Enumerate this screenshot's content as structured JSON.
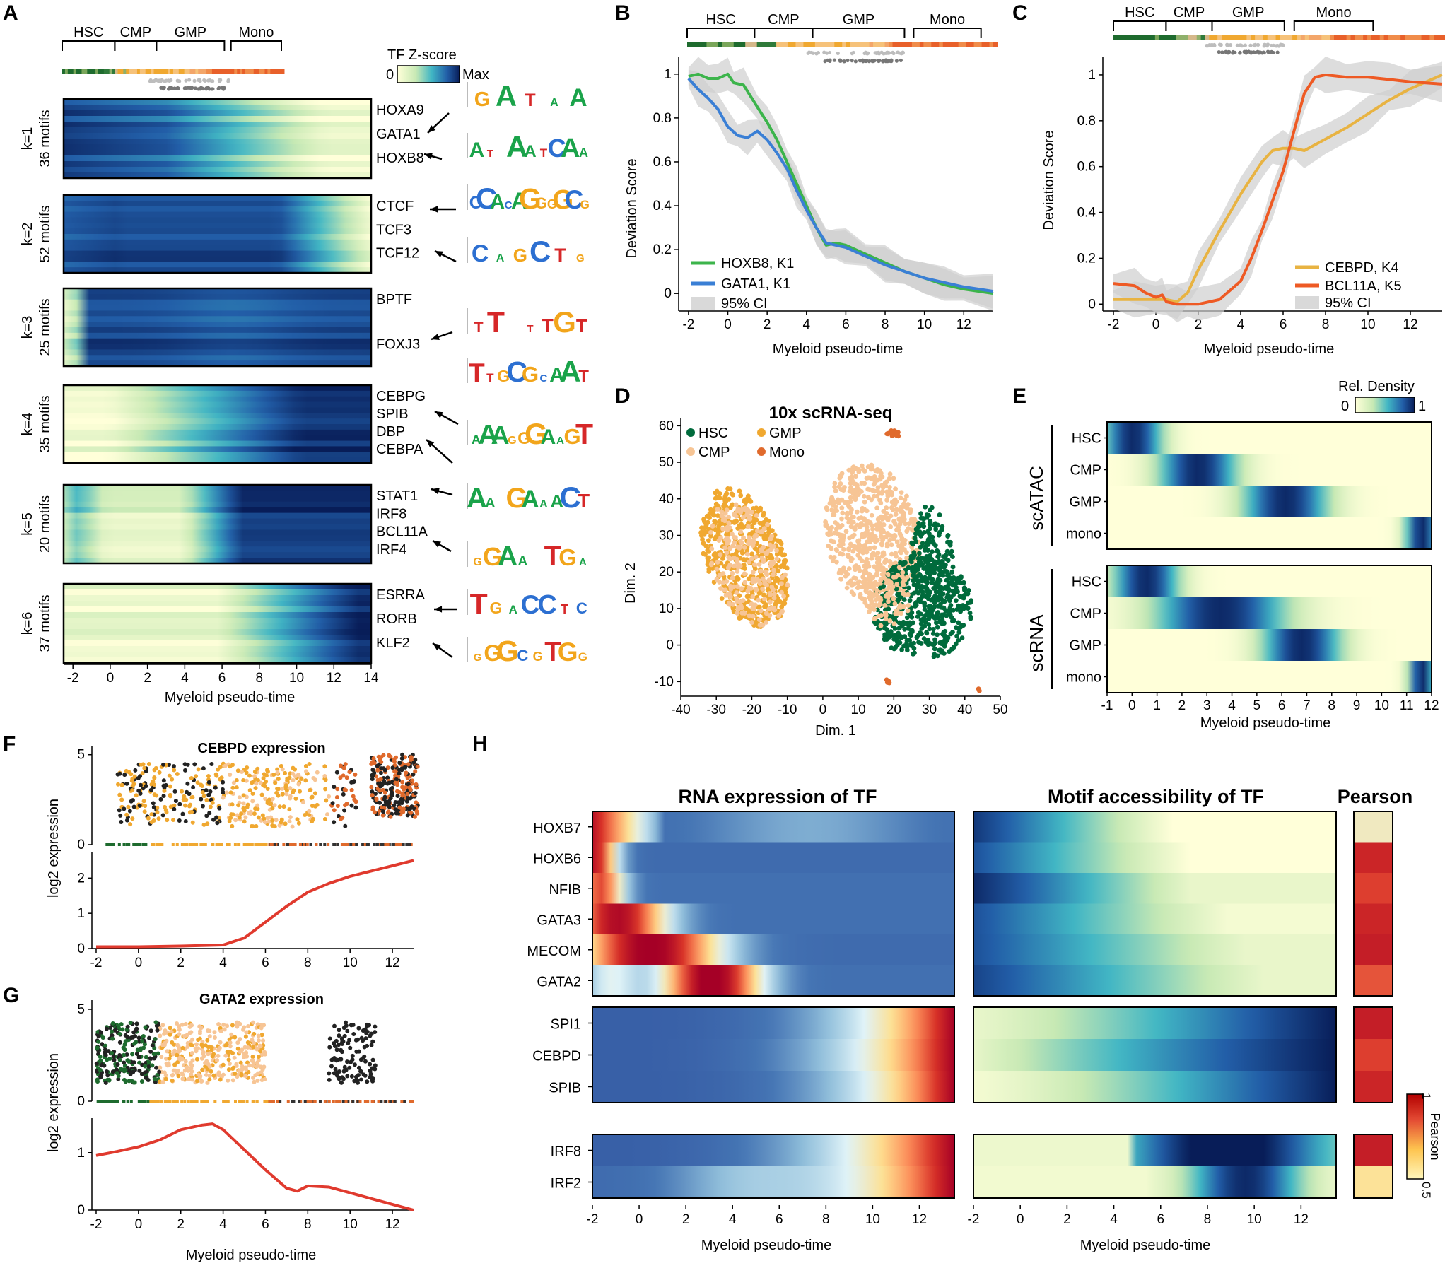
{
  "panel_labels": {
    "a": "A",
    "b": "B",
    "c": "C",
    "d": "D",
    "e": "E",
    "f": "F",
    "g": "G",
    "h": "H"
  },
  "stages": [
    "HSC",
    "CMP",
    "GMP",
    "Mono"
  ],
  "panelA": {
    "legend_title": "TF Z-score",
    "legend_min": "0",
    "legend_max": "Max",
    "xlabel": "Myeloid pseudo-time",
    "xticks": [
      "-2",
      "0",
      "2",
      "4",
      "6",
      "8",
      "10",
      "12",
      "14"
    ],
    "rows": [
      {
        "k": "k=1",
        "n": "36 motifs",
        "genes": [
          "HOXA9",
          "GATA1",
          "HOXB8"
        ]
      },
      {
        "k": "k=2",
        "n": "52 motifs",
        "genes": [
          "CTCF",
          "TCF3",
          "TCF12"
        ]
      },
      {
        "k": "k=3",
        "n": "25 motifs",
        "genes": [
          "BPTF",
          "FOXJ3"
        ]
      },
      {
        "k": "k=4",
        "n": "35 motifs",
        "genes": [
          "CEBPG",
          "SPIB",
          "DBP",
          "CEBPA"
        ]
      },
      {
        "k": "k=5",
        "n": "20 motifs",
        "genes": [
          "STAT1",
          "IRF8",
          "BCL11A",
          "IRF4"
        ]
      },
      {
        "k": "k=6",
        "n": "37 motifs",
        "genes": [
          "ESRRA",
          "RORB",
          "KLF2"
        ]
      }
    ],
    "logos": [
      "GATAA",
      "AT AATCAA",
      "CCACAGGGGCG",
      "CAGCTG",
      "TT TTGT",
      "TTGCGCAAT",
      "AAAGGGAAGT",
      "AA GAAACT",
      "GGAA TGA",
      "TGACCTC",
      "GGGCGTGG"
    ]
  },
  "chart_data": [
    {
      "panel": "B",
      "type": "line",
      "xlabel": "Myeloid pseudo-time",
      "ylabel": "Deviation Score",
      "xlim": [
        -2.5,
        13.5
      ],
      "ylim": [
        -0.08,
        1.08
      ],
      "xticks": [
        "-2",
        "0",
        "2",
        "4",
        "6",
        "8",
        "10",
        "12"
      ],
      "yticks": [
        "0",
        "0.2",
        "0.4",
        "0.6",
        "0.8",
        "1"
      ],
      "series": [
        {
          "name": "HOXB8, K1",
          "color": "#3cb44b",
          "x": [
            -2,
            -1.5,
            -1,
            -0.5,
            0,
            0.3,
            0.8,
            1.5,
            2,
            2.5,
            3,
            3.5,
            4,
            4.5,
            5,
            5.5,
            6,
            7,
            8,
            9,
            10,
            11,
            12,
            13.5
          ],
          "y": [
            0.99,
            1.0,
            0.98,
            0.98,
            1.0,
            0.96,
            0.95,
            0.85,
            0.78,
            0.7,
            0.6,
            0.5,
            0.4,
            0.3,
            0.22,
            0.23,
            0.22,
            0.18,
            0.14,
            0.1,
            0.07,
            0.04,
            0.02,
            0.0
          ]
        },
        {
          "name": "GATA1, K1",
          "color": "#3a7fd5",
          "x": [
            -2,
            -1.5,
            -1,
            -0.5,
            0,
            0.5,
            1,
            1.5,
            2,
            2.5,
            3,
            3.5,
            4,
            4.5,
            5,
            5.5,
            6,
            7,
            8,
            9,
            10,
            11,
            12,
            13.5
          ],
          "y": [
            0.98,
            0.93,
            0.89,
            0.84,
            0.76,
            0.72,
            0.71,
            0.74,
            0.7,
            0.64,
            0.57,
            0.47,
            0.38,
            0.3,
            0.23,
            0.22,
            0.21,
            0.17,
            0.13,
            0.1,
            0.07,
            0.05,
            0.03,
            0.01
          ]
        }
      ],
      "ci_label": "95% CI"
    },
    {
      "panel": "C",
      "type": "line",
      "xlabel": "Myeloid pseudo-time",
      "ylabel": "Deviation Score",
      "xlim": [
        -2.5,
        13.5
      ],
      "ylim": [
        -0.03,
        1.08
      ],
      "xticks": [
        "-2",
        "0",
        "2",
        "4",
        "6",
        "8",
        "10",
        "12"
      ],
      "yticks": [
        "0",
        "0.2",
        "0.4",
        "0.6",
        "0.8",
        "1"
      ],
      "series": [
        {
          "name": "CEBPD, K4",
          "color": "#e8b342",
          "x": [
            -2,
            -1,
            0,
            0.5,
            1,
            1.5,
            2,
            3,
            4,
            5,
            5.5,
            6,
            6.5,
            7,
            8,
            9,
            10,
            11,
            12,
            13.5
          ],
          "y": [
            0.02,
            0.02,
            0.02,
            0.02,
            0.01,
            0.05,
            0.15,
            0.32,
            0.48,
            0.62,
            0.67,
            0.68,
            0.68,
            0.67,
            0.72,
            0.77,
            0.83,
            0.89,
            0.94,
            1.0
          ]
        },
        {
          "name": "BCL11A, K5",
          "color": "#ee5a24",
          "x": [
            -2,
            -1,
            -0.5,
            0,
            0.3,
            0.5,
            1,
            1.5,
            2,
            3,
            4,
            4.5,
            5,
            5.5,
            6,
            6.5,
            7,
            7.5,
            8,
            9,
            10,
            11,
            12,
            13.5
          ],
          "y": [
            0.09,
            0.08,
            0.05,
            0.03,
            0.04,
            0.01,
            0.0,
            0.0,
            0.0,
            0.02,
            0.1,
            0.2,
            0.32,
            0.45,
            0.58,
            0.75,
            0.92,
            0.99,
            1.0,
            0.99,
            0.99,
            0.98,
            0.97,
            0.96
          ]
        }
      ],
      "ci_label": "95% CI"
    },
    {
      "panel": "D",
      "type": "scatter",
      "title": "10x scRNA-seq",
      "xlabel": "Dim. 1",
      "ylabel": "Dim. 2",
      "xlim": [
        -40,
        50
      ],
      "ylim": [
        -14,
        62
      ],
      "xticks": [
        "-40",
        "-30",
        "-20",
        "-10",
        "0",
        "10",
        "20",
        "30",
        "40",
        "50"
      ],
      "yticks": [
        "-10",
        "0",
        "10",
        "20",
        "30",
        "40",
        "50",
        "60"
      ],
      "legend": [
        {
          "name": "HSC",
          "color": "#006b3c"
        },
        {
          "name": "GMP",
          "color": "#f0a830"
        },
        {
          "name": "CMP",
          "color": "#f7c595"
        },
        {
          "name": "Mono",
          "color": "#e06a2c"
        }
      ]
    },
    {
      "panel": "F",
      "type": "scatter+line",
      "title": "CEBPD expression",
      "ylabel": "log2 expression",
      "xlabel": "",
      "xticks": [
        "-2",
        "0",
        "2",
        "4",
        "6",
        "8",
        "10",
        "12"
      ],
      "top_yticks": [
        "0",
        "5"
      ],
      "bottom_yticks": [
        "0",
        "1",
        "2"
      ],
      "smooth": {
        "x": [
          -2,
          0,
          2,
          4,
          5,
          6,
          7,
          8,
          9,
          10,
          11,
          12,
          13
        ],
        "y": [
          0.05,
          0.05,
          0.07,
          0.1,
          0.3,
          0.75,
          1.2,
          1.6,
          1.85,
          2.05,
          2.2,
          2.35,
          2.5
        ]
      }
    },
    {
      "panel": "G",
      "type": "scatter+line",
      "title": "GATA2 expression",
      "ylabel": "log2 expression",
      "xlabel": "Myeloid pseudo-time",
      "xticks": [
        "-2",
        "0",
        "2",
        "4",
        "6",
        "8",
        "10",
        "12"
      ],
      "top_yticks": [
        "0",
        "5"
      ],
      "bottom_yticks": [
        "0",
        "1"
      ],
      "smooth": {
        "x": [
          -2,
          -1,
          0,
          1,
          2,
          3,
          3.5,
          4,
          5,
          6,
          7,
          7.5,
          8,
          9,
          10,
          11,
          12,
          13
        ],
        "y": [
          0.95,
          1.02,
          1.1,
          1.22,
          1.4,
          1.48,
          1.5,
          1.4,
          1.05,
          0.7,
          0.38,
          0.33,
          0.42,
          0.4,
          0.3,
          0.2,
          0.1,
          0.0
        ]
      }
    }
  ],
  "panelE": {
    "legend_title": "Rel. Density",
    "legend_min": "0",
    "legend_max": "1",
    "group1": "scATAC",
    "group2": "scRNA",
    "rows": [
      "HSC",
      "CMP",
      "GMP",
      "mono"
    ],
    "xlabel": "Myeloid pseudo-time",
    "xticks": [
      "-1",
      "0",
      "1",
      "2",
      "3",
      "4",
      "5",
      "6",
      "7",
      "8",
      "9",
      "10",
      "11",
      "12"
    ]
  },
  "panelH": {
    "title_rna": "RNA expression of TF",
    "title_motif": "Motif accessibility of TF",
    "title_pearson": "Pearson",
    "group1": [
      "HOXB7",
      "HOXB6",
      "NFIB",
      "GATA3",
      "MECOM",
      "GATA2"
    ],
    "group2": [
      "SPI1",
      "CEBPD",
      "SPIB"
    ],
    "group3": [
      "IRF8",
      "IRF2"
    ],
    "xlabel": "Myeloid pseudo-time",
    "xticks": [
      "-2",
      "0",
      "2",
      "4",
      "6",
      "8",
      "10",
      "12"
    ],
    "pearson_values": [
      0.55,
      0.9,
      0.85,
      0.9,
      0.92,
      0.82,
      0.92,
      0.85,
      0.9,
      0.92,
      0.6
    ],
    "legend_label": "Pearson",
    "legend_max": "1",
    "legend_min": "0.5"
  },
  "colors": {
    "hsc": "#006b3c",
    "cmp": "#f7c595",
    "gmp": "#f0a830",
    "mono": "#e06a2c"
  }
}
